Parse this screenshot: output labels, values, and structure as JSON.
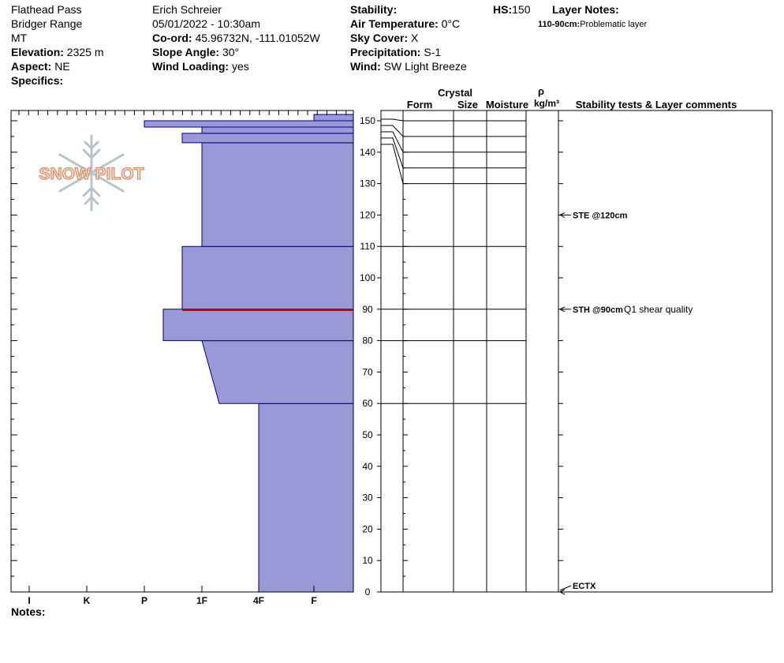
{
  "header": {
    "location": {
      "site": "Flathead Pass",
      "range": "Bridger Range",
      "state": "MT",
      "elevation_label": "Elevation:",
      "elevation_value": "2325 m",
      "aspect_label": "Aspect:",
      "aspect_value": "NE",
      "specifics_label": "Specifics:"
    },
    "observer": {
      "name": "Erich  Schreier",
      "datetime": "05/01/2022 - 10:30am",
      "coord_label": "Co-ord:",
      "coord_value": "45.96732N, -111.01052W",
      "slope_label": "Slope Angle:",
      "slope_value": "30°",
      "wind_loading_label": "Wind Loading:",
      "wind_loading_value": "yes"
    },
    "conditions": {
      "stability_label": "Stability:",
      "stability_value": "",
      "air_temp_label": "Air Temperature:",
      "air_temp_value": "0°C",
      "sky_label": "Sky Cover:",
      "sky_value": "X",
      "precip_label": "Precipitation:",
      "precip_value": "S-1",
      "wind_label": "Wind:",
      "wind_value": " SW Light Breeze"
    },
    "hs_label": "HS:",
    "hs_value": "150",
    "layer_notes_label": "Layer Notes:",
    "layer_note_range": "110-90cm:",
    "layer_note_text": "Problematic layer"
  },
  "logo_text": "SNOW PILOT",
  "notes_label": "Notes:",
  "colors": {
    "layer_fill": "#9999d8",
    "layer_stroke": "#000080",
    "critical_line": "#cc0000"
  },
  "table_headers": {
    "crystal": "Crystal",
    "form": "Form",
    "size": "Size",
    "moisture": "Moisture",
    "rho": "ρ",
    "density_unit": "kg/m³",
    "comments": "Stability tests & Layer comments"
  },
  "chart_data": {
    "type": "snow-profile",
    "y_axis": {
      "min": 0,
      "max": 150,
      "ticks": [
        0,
        10,
        20,
        30,
        40,
        50,
        60,
        70,
        80,
        90,
        100,
        110,
        120,
        130,
        140,
        150
      ]
    },
    "hardness_scale": [
      "I",
      "K",
      "P",
      "1F",
      "4F",
      "F"
    ],
    "hardness_layers": [
      {
        "bottom": 0,
        "top": 60,
        "hardness_bottom": "4F",
        "hardness_top": "4F"
      },
      {
        "bottom": 60,
        "top": 80,
        "hardness_bottom": "4F+",
        "hardness_top": "1F"
      },
      {
        "bottom": 80,
        "top": 90,
        "hardness_bottom": "P-",
        "hardness_top": "P-"
      },
      {
        "bottom": 90,
        "top": 110,
        "hardness_bottom": "1F-",
        "hardness_top": "1F-"
      },
      {
        "bottom": 110,
        "top": 143,
        "hardness_bottom": "1F",
        "hardness_top": "1F"
      },
      {
        "bottom": 143,
        "top": 146,
        "hardness_bottom": "1F-",
        "hardness_top": "1F-"
      },
      {
        "bottom": 146,
        "top": 148,
        "hardness_bottom": "1F",
        "hardness_top": "1F"
      },
      {
        "bottom": 148,
        "top": 150,
        "hardness_bottom": "P",
        "hardness_top": "P"
      },
      {
        "bottom": 150,
        "top": 152,
        "hardness_bottom": "F",
        "hardness_top": "F"
      }
    ],
    "critical_layer_cm": 90,
    "layer_boundaries": [
      0,
      60,
      80,
      90,
      110,
      130,
      135,
      140,
      145,
      150
    ],
    "tests": [
      {
        "depth": 120,
        "code": "STE @120cm",
        "comment": ""
      },
      {
        "depth": 90,
        "code": "STH @90cm",
        "comment": "Q1 shear quality"
      },
      {
        "depth": 0,
        "code": "ECTX",
        "comment": ""
      }
    ]
  }
}
